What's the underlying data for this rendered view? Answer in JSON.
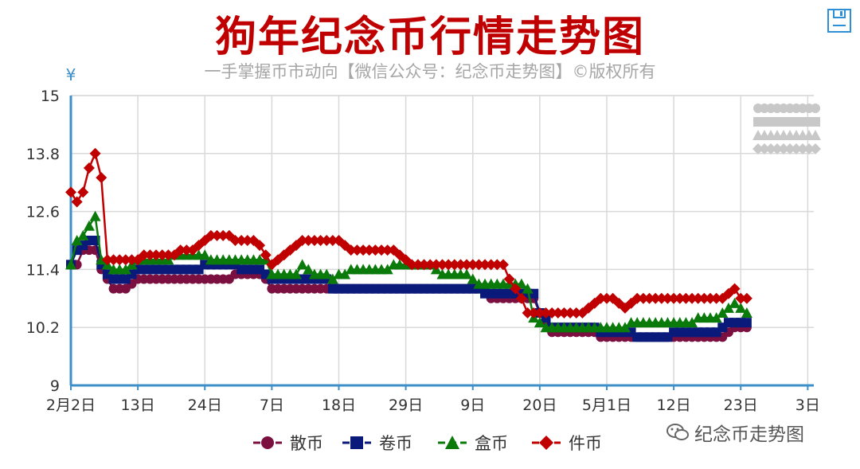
{
  "title": "狗年纪念币行情走势图",
  "subtitle": "一手掌握币市动向【微信公众号：纪念币走势图】©版权所有",
  "watermark": "纪念币走势图",
  "toolbar": {
    "save_icon": "save-icon",
    "menu_icon": "menu-icon"
  },
  "chart_data": {
    "type": "line",
    "yunit": "¥",
    "ylim": [
      9,
      15
    ],
    "yticks": [
      9,
      10.2,
      11.4,
      12.6,
      13.8,
      15
    ],
    "xlim": [
      0,
      122
    ],
    "xticks": [
      {
        "x": 0,
        "label": "2月2日"
      },
      {
        "x": 11,
        "label": "13日"
      },
      {
        "x": 22,
        "label": "24日"
      },
      {
        "x": 33,
        "label": "7日"
      },
      {
        "x": 44,
        "label": "18日"
      },
      {
        "x": 55,
        "label": "29日"
      },
      {
        "x": 66,
        "label": "9日"
      },
      {
        "x": 77,
        "label": "20日"
      },
      {
        "x": 88,
        "label": "5月1日"
      },
      {
        "x": 99,
        "label": "12日"
      },
      {
        "x": 110,
        "label": "23日"
      },
      {
        "x": 121,
        "label": "3日"
      }
    ],
    "grid": true,
    "legend_position": "bottom",
    "series": [
      {
        "name": "散币",
        "color": "#7b1040",
        "marker": "circle",
        "points": [
          [
            0,
            11.5
          ],
          [
            1,
            11.5
          ],
          [
            2,
            11.8
          ],
          [
            3,
            11.8
          ],
          [
            4,
            11.8
          ],
          [
            5,
            11.4
          ],
          [
            6,
            11.2
          ],
          [
            7,
            11.0
          ],
          [
            8,
            11.0
          ],
          [
            9,
            11.0
          ],
          [
            10,
            11.1
          ],
          [
            11,
            11.2
          ],
          [
            14,
            11.2
          ],
          [
            26,
            11.2
          ],
          [
            27,
            11.3
          ],
          [
            31,
            11.3
          ],
          [
            32,
            11.2
          ],
          [
            33,
            11.0
          ],
          [
            68,
            11.0
          ],
          [
            69,
            10.8
          ],
          [
            76,
            10.8
          ],
          [
            77,
            10.5
          ],
          [
            78,
            10.3
          ],
          [
            79,
            10.1
          ],
          [
            86,
            10.1
          ],
          [
            87,
            10.0
          ],
          [
            107,
            10.0
          ],
          [
            108,
            10.1
          ],
          [
            109,
            10.2
          ],
          [
            111,
            10.2
          ]
        ]
      },
      {
        "name": "卷币",
        "color": "#0a1a7a",
        "marker": "square",
        "points": [
          [
            0,
            11.5
          ],
          [
            1,
            11.8
          ],
          [
            2,
            11.9
          ],
          [
            3,
            12.0
          ],
          [
            4,
            12.0
          ],
          [
            5,
            11.5
          ],
          [
            6,
            11.3
          ],
          [
            7,
            11.2
          ],
          [
            8,
            11.2
          ],
          [
            9,
            11.2
          ],
          [
            10,
            11.3
          ],
          [
            11,
            11.4
          ],
          [
            21,
            11.4
          ],
          [
            22,
            11.5
          ],
          [
            27,
            11.5
          ],
          [
            28,
            11.4
          ],
          [
            31,
            11.4
          ],
          [
            32,
            11.3
          ],
          [
            33,
            11.2
          ],
          [
            42,
            11.2
          ],
          [
            43,
            11.0
          ],
          [
            67,
            11.0
          ],
          [
            68,
            10.9
          ],
          [
            76,
            10.9
          ],
          [
            77,
            10.5
          ],
          [
            78,
            10.4
          ],
          [
            79,
            10.2
          ],
          [
            86,
            10.2
          ],
          [
            87,
            10.1
          ],
          [
            92,
            10.1
          ],
          [
            93,
            10.0
          ],
          [
            98,
            10.0
          ],
          [
            99,
            10.1
          ],
          [
            106,
            10.1
          ],
          [
            107,
            10.2
          ],
          [
            108,
            10.3
          ],
          [
            111,
            10.3
          ]
        ]
      },
      {
        "name": "盒币",
        "color": "#0a7a0a",
        "marker": "triangle",
        "points": [
          [
            0,
            11.5
          ],
          [
            1,
            12.0
          ],
          [
            2,
            12.1
          ],
          [
            3,
            12.3
          ],
          [
            4,
            12.5
          ],
          [
            5,
            11.6
          ],
          [
            6,
            11.5
          ],
          [
            7,
            11.4
          ],
          [
            8,
            11.4
          ],
          [
            9,
            11.4
          ],
          [
            10,
            11.5
          ],
          [
            11,
            11.6
          ],
          [
            16,
            11.6
          ],
          [
            17,
            11.7
          ],
          [
            22,
            11.7
          ],
          [
            23,
            11.6
          ],
          [
            32,
            11.6
          ],
          [
            33,
            11.3
          ],
          [
            37,
            11.3
          ],
          [
            38,
            11.5
          ],
          [
            39,
            11.4
          ],
          [
            40,
            11.3
          ],
          [
            42,
            11.3
          ],
          [
            43,
            11.2
          ],
          [
            44,
            11.3
          ],
          [
            45,
            11.3
          ],
          [
            46,
            11.4
          ],
          [
            52,
            11.4
          ],
          [
            53,
            11.5
          ],
          [
            59,
            11.5
          ],
          [
            60,
            11.4
          ],
          [
            61,
            11.3
          ],
          [
            65,
            11.3
          ],
          [
            66,
            11.2
          ],
          [
            67,
            11.1
          ],
          [
            74,
            11.1
          ],
          [
            75,
            11.0
          ],
          [
            76,
            10.4
          ],
          [
            77,
            10.3
          ],
          [
            78,
            10.2
          ],
          [
            91,
            10.2
          ],
          [
            92,
            10.3
          ],
          [
            102,
            10.3
          ],
          [
            103,
            10.4
          ],
          [
            106,
            10.4
          ],
          [
            107,
            10.5
          ],
          [
            108,
            10.6
          ],
          [
            109,
            10.7
          ],
          [
            110,
            10.6
          ],
          [
            111,
            10.5
          ]
        ]
      },
      {
        "name": "件币",
        "color": "#c00000",
        "marker": "diamond",
        "points": [
          [
            0,
            13.0
          ],
          [
            1,
            12.8
          ],
          [
            2,
            13.0
          ],
          [
            3,
            13.5
          ],
          [
            4,
            13.8
          ],
          [
            5,
            13.3
          ],
          [
            6,
            11.6
          ],
          [
            11,
            11.6
          ],
          [
            12,
            11.7
          ],
          [
            17,
            11.7
          ],
          [
            18,
            11.8
          ],
          [
            20,
            11.8
          ],
          [
            21,
            11.9
          ],
          [
            22,
            12.0
          ],
          [
            23,
            12.1
          ],
          [
            26,
            12.1
          ],
          [
            27,
            12.0
          ],
          [
            30,
            12.0
          ],
          [
            31,
            11.9
          ],
          [
            32,
            11.7
          ],
          [
            33,
            11.5
          ],
          [
            34,
            11.6
          ],
          [
            35,
            11.7
          ],
          [
            36,
            11.8
          ],
          [
            37,
            11.9
          ],
          [
            38,
            12.0
          ],
          [
            43,
            12.0
          ],
          [
            44,
            12.0
          ],
          [
            45,
            11.9
          ],
          [
            46,
            11.8
          ],
          [
            53,
            11.8
          ],
          [
            54,
            11.7
          ],
          [
            55,
            11.6
          ],
          [
            56,
            11.5
          ],
          [
            71,
            11.5
          ],
          [
            72,
            11.2
          ],
          [
            73,
            11.0
          ],
          [
            74,
            10.8
          ],
          [
            75,
            10.5
          ],
          [
            84,
            10.5
          ],
          [
            85,
            10.6
          ],
          [
            86,
            10.7
          ],
          [
            87,
            10.8
          ],
          [
            89,
            10.8
          ],
          [
            90,
            10.7
          ],
          [
            91,
            10.6
          ],
          [
            92,
            10.7
          ],
          [
            93,
            10.8
          ],
          [
            99,
            10.8
          ],
          [
            100,
            10.8
          ],
          [
            107,
            10.8
          ],
          [
            108,
            10.9
          ],
          [
            109,
            11.0
          ],
          [
            110,
            10.8
          ],
          [
            111,
            10.8
          ]
        ]
      }
    ]
  }
}
